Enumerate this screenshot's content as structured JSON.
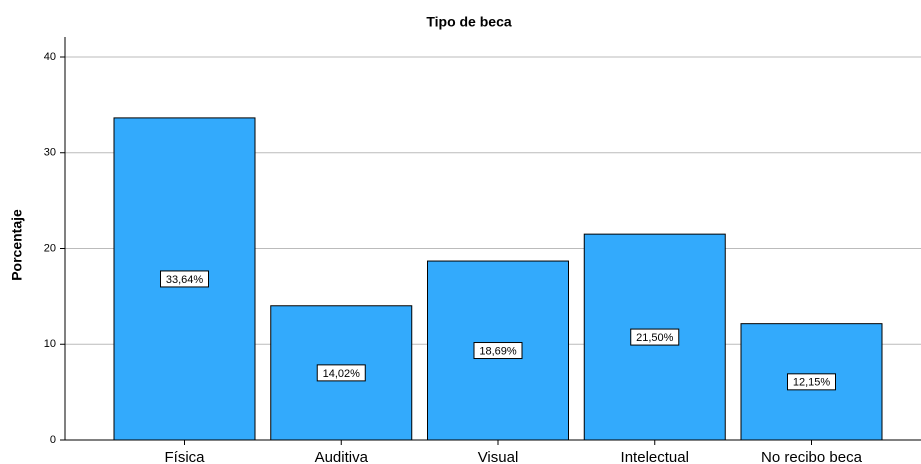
{
  "chart_data": {
    "type": "bar",
    "title": "Tipo de beca",
    "y_label": "Porcentaje",
    "categories": [
      "Física",
      "Auditiva",
      "Visual",
      "Intelectual",
      "No recibo beca"
    ],
    "values": [
      33.64,
      14.02,
      18.69,
      21.5,
      12.15
    ],
    "value_labels": [
      "33,64%",
      "14,02%",
      "18,69%",
      "21,50%",
      "12,15%"
    ],
    "color": "#33aafc",
    "ylim": [
      0,
      40
    ],
    "yticks": [
      0,
      10,
      20,
      30,
      40
    ],
    "grid": true
  }
}
